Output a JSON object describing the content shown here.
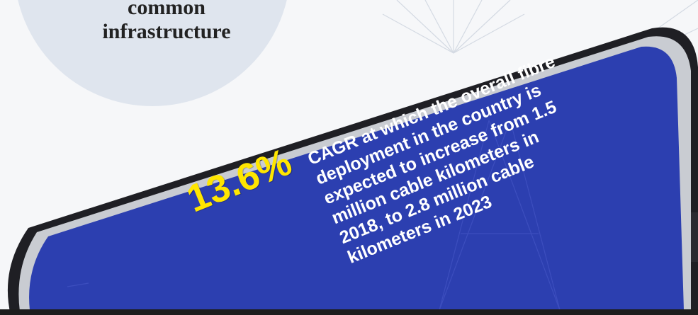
{
  "badge": {
    "lines": [
      "common",
      "infrastructure"
    ]
  },
  "stat": {
    "value": "13.6%",
    "description_lines": [
      "CAGR at which the overall fibre",
      "deployment in the country is",
      "expected to increase from 1.5",
      "million cable kilometers in",
      "2018, to 2.8 million cable",
      "kilometers in 2023"
    ]
  },
  "colors": {
    "screen": "#2c3fb0",
    "accent": "#ffe600",
    "text": "#ffffff",
    "badge": "#dfe5ee"
  }
}
